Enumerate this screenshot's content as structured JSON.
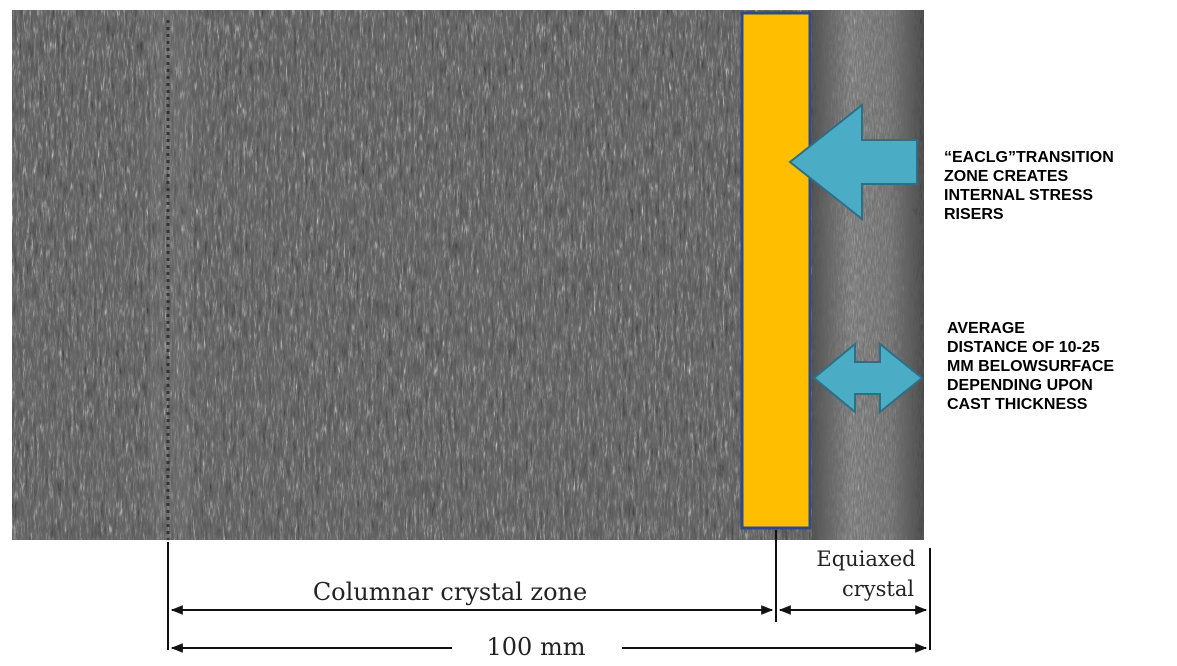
{
  "figure": {
    "colors": {
      "transition_band": "#FFBE00",
      "transition_band_border": "#2E4A86",
      "arrow_fill": "#4BACC6",
      "arrow_stroke": "#2E6F86",
      "micrograph_dark": "#2a2a2a",
      "micrograph_light": "#bdbdbd"
    },
    "labels": {
      "columnar_zone": "Columnar crystal zone",
      "equiaxed_line1": "Equiaxed",
      "equiaxed_line2": "crystal",
      "total_width": "100 mm"
    },
    "callouts": {
      "transition": {
        "lines": [
          "“EACLG”TRANSITION",
          "ZONE CREATES",
          "INTERNAL STRESS",
          "RISERS"
        ],
        "arrow_icon": "left-arrow-icon"
      },
      "distance": {
        "lines": [
          "AVERAGE",
          "DISTANCE OF 10-25",
          "MM BELOWSURFACE",
          "DEPENDING  UPON",
          "CAST  THICKNESS"
        ],
        "arrow_icon": "double-arrow-icon"
      }
    }
  }
}
